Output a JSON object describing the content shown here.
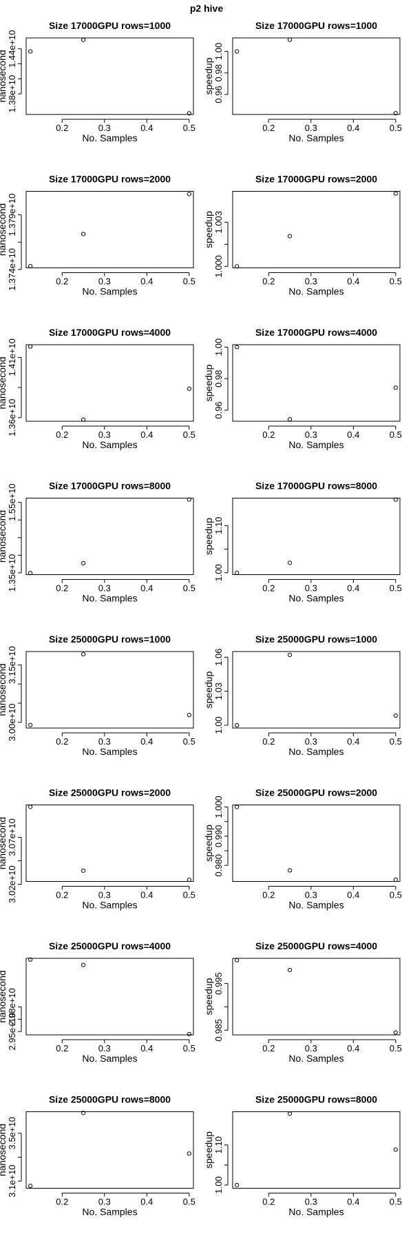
{
  "page_title": "p2   hive",
  "chart_data": [
    {
      "type": "scatter",
      "title": "Size 17000GPU rows=1000",
      "xlabel": "No. Samples",
      "ylabel": "nanosecond",
      "x": [
        0.125,
        0.25,
        0.5
      ],
      "y": [
        14365000000.0,
        14520000000.0,
        13540000000.0
      ],
      "xlim": [
        0.115,
        0.51
      ],
      "ylim": [
        13525000000.0,
        14545000000.0
      ],
      "xticks": [
        0.2,
        0.3,
        0.4,
        0.5
      ],
      "xtick_labels": [
        "0.2",
        "0.3",
        "0.4",
        "0.5"
      ],
      "yticks": [
        13800000000.0,
        14000000000.0,
        14200000000.0,
        14400000000.0
      ],
      "ytick_labels": [
        "1.38e+10",
        "",
        "",
        "1.44e+10"
      ]
    },
    {
      "type": "scatter",
      "title": "Size 17000GPU rows=1000",
      "xlabel": "No. Samples",
      "ylabel": "speedup",
      "x": [
        0.125,
        0.25,
        0.5
      ],
      "y": [
        1.0,
        1.0108,
        0.9426
      ],
      "xlim": [
        0.115,
        0.51
      ],
      "ylim": [
        0.9415,
        1.0125
      ],
      "xticks": [
        0.2,
        0.3,
        0.4,
        0.5
      ],
      "xtick_labels": [
        "0.2",
        "0.3",
        "0.4",
        "0.5"
      ],
      "yticks": [
        0.96,
        0.98,
        1.0
      ],
      "ytick_labels": [
        "0.96",
        "0.98",
        "1.00"
      ]
    },
    {
      "type": "scatter",
      "title": "Size 17000GPU rows=2000",
      "xlabel": "No. Samples",
      "ylabel": "nanosecond",
      "x": [
        0.125,
        0.25,
        0.5
      ],
      "y": [
        13743000000.0,
        13772500000.0,
        13809000000.0
      ],
      "xlim": [
        0.115,
        0.51
      ],
      "ylim": [
        13741500000.0,
        13811500000.0
      ],
      "xticks": [
        0.2,
        0.3,
        0.4,
        0.5
      ],
      "xtick_labels": [
        "0.2",
        "0.3",
        "0.4",
        "0.5"
      ],
      "yticks": [
        13740000000.0,
        13765000000.0,
        13790000000.0
      ],
      "ytick_labels": [
        "1.374e+10",
        "",
        "1.379e+10"
      ]
    },
    {
      "type": "scatter",
      "title": "Size 17000GPU rows=2000",
      "xlabel": "No. Samples",
      "ylabel": "speedup",
      "x": [
        0.125,
        0.25,
        0.5
      ],
      "y": [
        1.0,
        1.00205,
        1.00495
      ],
      "xlim": [
        0.115,
        0.51
      ],
      "ylim": [
        0.9999,
        1.0051
      ],
      "xticks": [
        0.2,
        0.3,
        0.4,
        0.5
      ],
      "xtick_labels": [
        "0.2",
        "0.3",
        "0.4",
        "0.5"
      ],
      "yticks": [
        1.0,
        1.0015,
        1.003
      ],
      "ytick_labels": [
        "1.000",
        "",
        "1.003"
      ]
    },
    {
      "type": "scatter",
      "title": "Size 17000GPU rows=4000",
      "xlabel": "No. Samples",
      "ylabel": "nanosecond",
      "x": [
        0.125,
        0.25,
        0.5
      ],
      "y": [
        14190000000.0,
        13583000000.0,
        13840000000.0
      ],
      "xlim": [
        0.115,
        0.51
      ],
      "ylim": [
        13570000000.0,
        14205000000.0
      ],
      "xticks": [
        0.2,
        0.3,
        0.4,
        0.5
      ],
      "xtick_labels": [
        "0.2",
        "0.3",
        "0.4",
        "0.5"
      ],
      "yticks": [
        13600000000.0,
        13850000000.0,
        14100000000.0
      ],
      "ytick_labels": [
        "1.36e+10",
        "",
        "1.41e+10"
      ]
    },
    {
      "type": "scatter",
      "title": "Size 17000GPU rows=4000",
      "xlabel": "No. Samples",
      "ylabel": "speedup",
      "x": [
        0.125,
        0.25,
        0.5
      ],
      "y": [
        1.0,
        0.9542,
        0.9743
      ],
      "xlim": [
        0.115,
        0.51
      ],
      "ylim": [
        0.953,
        1.0015
      ],
      "xticks": [
        0.2,
        0.3,
        0.4,
        0.5
      ],
      "xtick_labels": [
        "0.2",
        "0.3",
        "0.4",
        "0.5"
      ],
      "yticks": [
        0.96,
        0.98,
        1.0
      ],
      "ytick_labels": [
        "0.96",
        "0.98",
        "1.00"
      ]
    },
    {
      "type": "scatter",
      "title": "Size 17000GPU rows=8000",
      "xlabel": "No. Samples",
      "ylabel": "nanosecond",
      "x": [
        0.125,
        0.25,
        0.5
      ],
      "y": [
        13495000000.0,
        13775000000.0,
        15580000000.0
      ],
      "xlim": [
        0.115,
        0.51
      ],
      "ylim": [
        13450000000.0,
        15620000000.0
      ],
      "xticks": [
        0.2,
        0.3,
        0.4,
        0.5
      ],
      "xtick_labels": [
        "0.2",
        "0.3",
        "0.4",
        "0.5"
      ],
      "yticks": [
        13500000000.0,
        14000000000.0,
        14500000000.0,
        15000000000.0,
        15500000000.0
      ],
      "ytick_labels": [
        "1.35e+10",
        "",
        "",
        "",
        "1.55e+10"
      ]
    },
    {
      "type": "scatter",
      "title": "Size 17000GPU rows=8000",
      "xlabel": "No. Samples",
      "ylabel": "speedup",
      "x": [
        0.125,
        0.25,
        0.5
      ],
      "y": [
        1.0,
        1.021,
        1.1548
      ],
      "xlim": [
        0.115,
        0.51
      ],
      "ylim": [
        0.996,
        1.158
      ],
      "xticks": [
        0.2,
        0.3,
        0.4,
        0.5
      ],
      "xtick_labels": [
        "0.2",
        "0.3",
        "0.4",
        "0.5"
      ],
      "yticks": [
        1.0,
        1.05,
        1.1
      ],
      "ytick_labels": [
        "1.00",
        "",
        "1.10"
      ]
    },
    {
      "type": "scatter",
      "title": "Size 25000GPU rows=1000",
      "xlabel": "No. Samples",
      "ylabel": "nanosecond",
      "x": [
        0.125,
        0.25,
        0.5
      ],
      "y": [
        29930000000.0,
        31780000000.0,
        30190000000.0
      ],
      "xlim": [
        0.115,
        0.51
      ],
      "ylim": [
        29850000000.0,
        31850000000.0
      ],
      "xticks": [
        0.2,
        0.3,
        0.4,
        0.5
      ],
      "xtick_labels": [
        "0.2",
        "0.3",
        "0.4",
        "0.5"
      ],
      "yticks": [
        30000000000.0,
        30500000000.0,
        31000000000.0,
        31500000000.0
      ],
      "ytick_labels": [
        "3.00e+10",
        "",
        "",
        "3.15e+10"
      ]
    },
    {
      "type": "scatter",
      "title": "Size 25000GPU rows=1000",
      "xlabel": "No. Samples",
      "ylabel": "speedup",
      "x": [
        0.125,
        0.25,
        0.5
      ],
      "y": [
        1.0,
        1.062,
        1.0085
      ],
      "xlim": [
        0.115,
        0.51
      ],
      "ylim": [
        0.9975,
        1.065
      ],
      "xticks": [
        0.2,
        0.3,
        0.4,
        0.5
      ],
      "xtick_labels": [
        "0.2",
        "0.3",
        "0.4",
        "0.5"
      ],
      "yticks": [
        1.0,
        1.03,
        1.06
      ],
      "ytick_labels": [
        "1.00",
        "1.03",
        "1.06"
      ]
    },
    {
      "type": "scatter",
      "title": "Size 25000GPU rows=2000",
      "xlabel": "No. Samples",
      "ylabel": "nanosecond",
      "x": [
        0.125,
        0.25,
        0.5
      ],
      "y": [
        31025000000.0,
        30345000000.0,
        30248000000.0
      ],
      "xlim": [
        0.115,
        0.51
      ],
      "ylim": [
        30230000000.0,
        31045000000.0
      ],
      "xticks": [
        0.2,
        0.3,
        0.4,
        0.5
      ],
      "xtick_labels": [
        "0.2",
        "0.3",
        "0.4",
        "0.5"
      ],
      "yticks": [
        30200000000.0,
        30450000000.0,
        30700000000.0
      ],
      "ytick_labels": [
        "3.02e+10",
        "",
        "3.07e+10"
      ]
    },
    {
      "type": "scatter",
      "title": "Size 25000GPU rows=2000",
      "xlabel": "No. Samples",
      "ylabel": "speedup",
      "x": [
        0.125,
        0.25,
        0.5
      ],
      "y": [
        1.0,
        0.9783,
        0.9751
      ],
      "xlim": [
        0.115,
        0.51
      ],
      "ylim": [
        0.9745,
        1.0007
      ],
      "xticks": [
        0.2,
        0.3,
        0.4,
        0.5
      ],
      "xtick_labels": [
        "0.2",
        "0.3",
        "0.4",
        "0.5"
      ],
      "yticks": [
        0.98,
        0.985,
        0.99,
        0.995,
        1.0
      ],
      "ytick_labels": [
        "0.980",
        "",
        "0.990",
        "",
        "1.000"
      ]
    },
    {
      "type": "scatter",
      "title": "Size 25000GPU rows=4000",
      "xlabel": "No. Samples",
      "ylabel": "nanosecond",
      "x": [
        0.125,
        0.25,
        0.5
      ],
      "y": [
        30375000000.0,
        30310000000.0,
        29470000000.0
      ],
      "xlim": [
        0.115,
        0.51
      ],
      "ylim": [
        29460000000.0,
        30390000000.0
      ],
      "xticks": [
        0.2,
        0.3,
        0.4,
        0.5
      ],
      "xtick_labels": [
        "0.2",
        "0.3",
        "0.4",
        "0.5"
      ],
      "yticks": [
        29500000000.0,
        29650000000.0,
        29800000000.0
      ],
      "ytick_labels": [
        "2.95e+10",
        "",
        "2.98e+10"
      ]
    },
    {
      "type": "scatter",
      "title": "Size 25000GPU rows=4000",
      "xlabel": "No. Samples",
      "ylabel": "speedup",
      "x": [
        0.125,
        0.25,
        0.5
      ],
      "y": [
        1.0,
        0.9979,
        0.9845
      ],
      "xlim": [
        0.115,
        0.51
      ],
      "ylim": [
        0.984,
        1.0004
      ],
      "xticks": [
        0.2,
        0.3,
        0.4,
        0.5
      ],
      "xtick_labels": [
        "0.2",
        "0.3",
        "0.4",
        "0.5"
      ],
      "yticks": [
        0.985,
        0.99,
        0.995
      ],
      "ytick_labels": [
        "0.985",
        "",
        "0.995"
      ]
    },
    {
      "type": "scatter",
      "title": "Size 25000GPU rows=8000",
      "xlabel": "No. Samples",
      "ylabel": "nanosecond",
      "x": [
        0.125,
        0.25,
        0.5
      ],
      "y": [
        30600000000.0,
        36700000000.0,
        33300000000.0
      ],
      "xlim": [
        0.115,
        0.51
      ],
      "ylim": [
        30400000000.0,
        36800000000.0
      ],
      "xticks": [
        0.2,
        0.3,
        0.4,
        0.5
      ],
      "xtick_labels": [
        "0.2",
        "0.3",
        "0.4",
        "0.5"
      ],
      "yticks": [
        31000000000.0,
        33000000000.0,
        35000000000.0
      ],
      "ytick_labels": [
        "3.1e+10",
        "",
        "3.5e+10"
      ]
    },
    {
      "type": "scatter",
      "title": "Size 25000GPU rows=8000",
      "xlabel": "No. Samples",
      "ylabel": "speedup",
      "x": [
        0.125,
        0.25,
        0.5
      ],
      "y": [
        1.0,
        1.178,
        1.0885
      ],
      "xlim": [
        0.115,
        0.51
      ],
      "ylim": [
        0.992,
        1.183
      ],
      "xticks": [
        0.2,
        0.3,
        0.4,
        0.5
      ],
      "xtick_labels": [
        "0.2",
        "0.3",
        "0.4",
        "0.5"
      ],
      "yticks": [
        1.0,
        1.05,
        1.1
      ],
      "ytick_labels": [
        "1.00",
        "",
        "1.10"
      ]
    }
  ]
}
